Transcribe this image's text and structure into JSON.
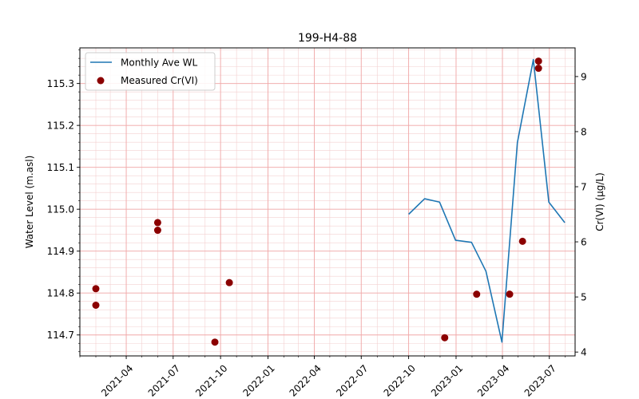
{
  "chart_data": {
    "type": "line",
    "title": "199-H4-88",
    "ylabel": "Water Level (m.asl)",
    "y2label": "Cr(VI) (µg/L)",
    "ylim": [
      114.65,
      115.385
    ],
    "y2lim": [
      3.93,
      9.52
    ],
    "xlim": [
      "2021-01-01",
      "2023-08-20"
    ],
    "grid": true,
    "legend_position": "top-left",
    "x_ticks": [
      "2021-04",
      "2021-07",
      "2021-10",
      "2022-01",
      "2022-04",
      "2022-07",
      "2022-10",
      "2023-01",
      "2023-04",
      "2023-07"
    ],
    "y_ticks": [
      "114.7",
      "114.8",
      "114.9",
      "115.0",
      "115.1",
      "115.2",
      "115.3"
    ],
    "y2_ticks": [
      "4",
      "5",
      "6",
      "7",
      "8",
      "9"
    ],
    "series": [
      {
        "name": "Monthly Ave WL",
        "axis": "left",
        "kind": "line",
        "color": "#1f77b4",
        "points": [
          {
            "x": "2022-10-01",
            "y": 114.988
          },
          {
            "x": "2022-11-01",
            "y": 115.025
          },
          {
            "x": "2022-11-30",
            "y": 115.017
          },
          {
            "x": "2022-12-31",
            "y": 114.926
          },
          {
            "x": "2023-01-31",
            "y": 114.921
          },
          {
            "x": "2023-02-28",
            "y": 114.852
          },
          {
            "x": "2023-03-31",
            "y": 114.683
          },
          {
            "x": "2023-04-30",
            "y": 115.159
          },
          {
            "x": "2023-05-31",
            "y": 115.357
          },
          {
            "x": "2023-06-30",
            "y": 115.017
          },
          {
            "x": "2023-07-31",
            "y": 114.968
          }
        ]
      },
      {
        "name": "Measured Cr(VI)",
        "axis": "right",
        "kind": "scatter",
        "color": "#8b0000",
        "points": [
          {
            "x": "2021-02-01",
            "y": 5.15
          },
          {
            "x": "2021-02-01",
            "y": 4.85
          },
          {
            "x": "2021-06-01",
            "y": 6.35
          },
          {
            "x": "2021-06-01",
            "y": 6.21
          },
          {
            "x": "2021-09-20",
            "y": 4.18
          },
          {
            "x": "2021-10-18",
            "y": 5.26
          },
          {
            "x": "2022-12-10",
            "y": 4.26
          },
          {
            "x": "2023-02-10",
            "y": 5.05
          },
          {
            "x": "2023-04-15",
            "y": 5.05
          },
          {
            "x": "2023-05-10",
            "y": 6.01
          },
          {
            "x": "2023-06-10",
            "y": 9.28
          },
          {
            "x": "2023-06-10",
            "y": 9.15
          }
        ]
      }
    ]
  }
}
